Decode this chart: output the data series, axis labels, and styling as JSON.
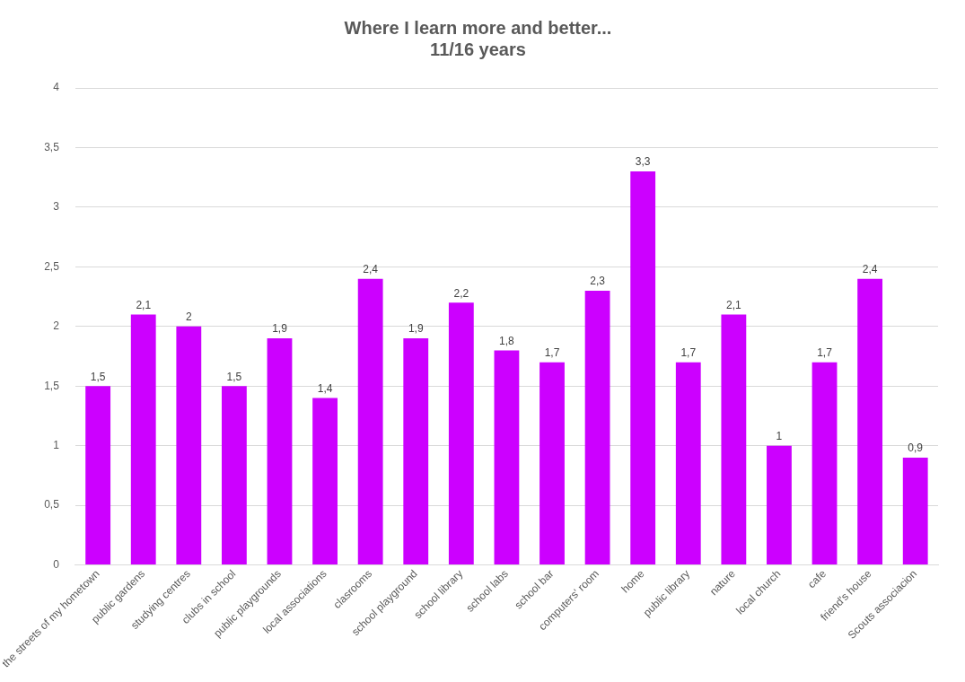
{
  "chart_data": {
    "type": "bar",
    "title": "Where I learn more and better...\n11/16 years",
    "categories": [
      "the streets of my hometown",
      "public gardens",
      "studying centres",
      "clubs in school",
      "public playgrounds",
      "local associations",
      "clasrooms",
      "school playground",
      "school library",
      "school labs",
      "school bar",
      "computers' room",
      "home",
      "public library",
      "nature",
      "local church",
      "cafe",
      "friend's house",
      "Scouts associacion"
    ],
    "values": [
      1.5,
      2.1,
      2,
      1.5,
      1.9,
      1.4,
      2.4,
      1.9,
      2.2,
      1.8,
      1.7,
      2.3,
      3.3,
      1.7,
      2.1,
      1,
      1.7,
      2.4,
      0.9
    ],
    "value_labels": [
      "1,5",
      "2,1",
      "2",
      "1,5",
      "1,9",
      "1,4",
      "2,4",
      "1,9",
      "2,2",
      "1,8",
      "1,7",
      "2,3",
      "3,3",
      "1,7",
      "2,1",
      "1",
      "1,7",
      "2,4",
      "0,9"
    ],
    "color": "#cc00ff",
    "ylim": [
      0,
      4
    ],
    "yticks": [
      0,
      {
        "value": 0.5,
        "label": "0,5"
      },
      1,
      {
        "value": 1.5,
        "label": "1,5"
      },
      2,
      {
        "value": 2.5,
        "label": "2,5"
      },
      3,
      {
        "value": 3.5,
        "label": "3,5"
      },
      4
    ],
    "grid": "y",
    "legend": false
  }
}
